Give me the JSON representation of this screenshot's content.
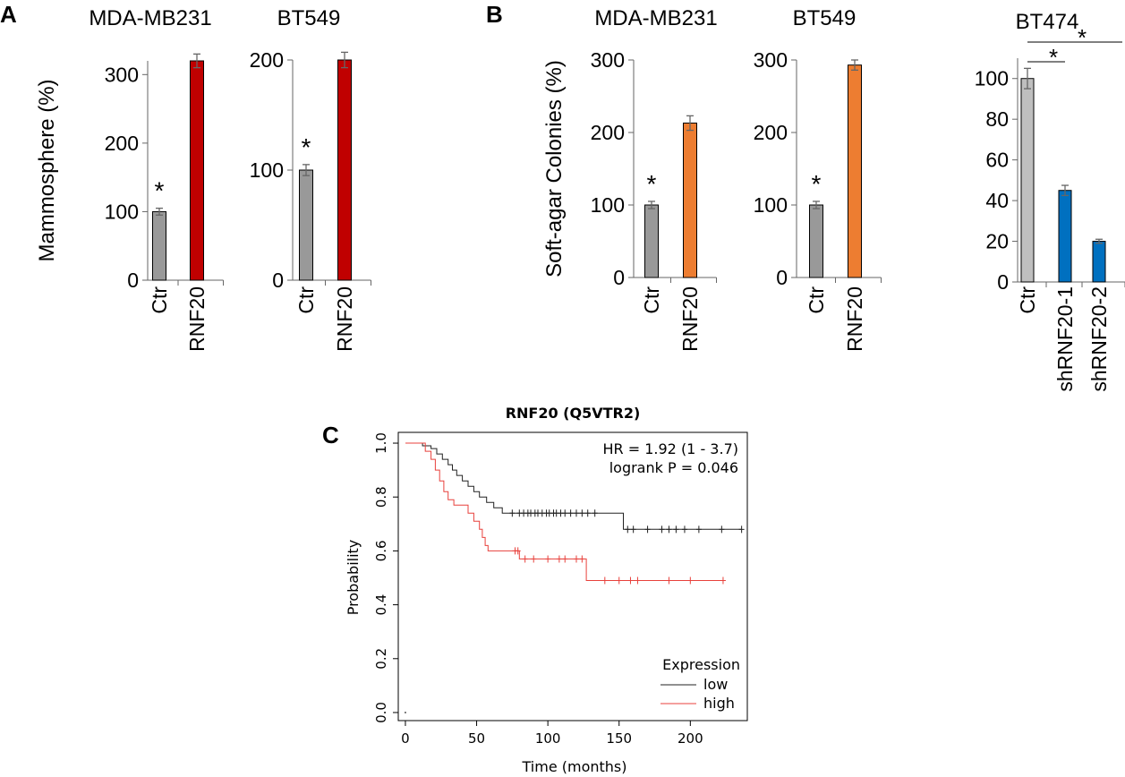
{
  "panel_letters": [
    "A",
    "B",
    "C"
  ],
  "chart_data": [
    {
      "id": "A1",
      "panel": "A",
      "type": "bar",
      "title": "MDA-MB231",
      "ylabel": "Mammosphere (%)",
      "ylim": [
        0,
        320
      ],
      "yticks": [
        0,
        100,
        200,
        300
      ],
      "categories": [
        "Ctr",
        "RNF20"
      ],
      "values": [
        100,
        320
      ],
      "errors": [
        5,
        10
      ],
      "colors": [
        "#999999",
        "#c00000"
      ],
      "annotations": [
        {
          "text": "*",
          "category": "Ctr"
        }
      ]
    },
    {
      "id": "A2",
      "panel": "A",
      "type": "bar",
      "title": "BT549",
      "ylabel": "",
      "ylim": [
        0,
        200
      ],
      "yticks": [
        0,
        100,
        200
      ],
      "categories": [
        "Ctr",
        "RNF20"
      ],
      "values": [
        100,
        200
      ],
      "errors": [
        5,
        7
      ],
      "colors": [
        "#999999",
        "#c00000"
      ],
      "annotations": [
        {
          "text": "*",
          "category": "Ctr"
        }
      ]
    },
    {
      "id": "B1",
      "panel": "B",
      "type": "bar",
      "title": "MDA-MB231",
      "ylabel": "Soft-agar Colonies (%)",
      "ylim": [
        0,
        300
      ],
      "yticks": [
        0,
        100,
        200,
        300
      ],
      "categories": [
        "Ctr",
        "RNF20"
      ],
      "values": [
        100,
        213
      ],
      "errors": [
        5,
        10
      ],
      "colors": [
        "#999999",
        "#ed7d31"
      ],
      "annotations": [
        {
          "text": "*",
          "category": "Ctr"
        }
      ]
    },
    {
      "id": "B2",
      "panel": "B",
      "type": "bar",
      "title": "BT549",
      "ylabel": "",
      "ylim": [
        0,
        300
      ],
      "yticks": [
        0,
        100,
        200,
        300
      ],
      "categories": [
        "Ctr",
        "RNF20"
      ],
      "values": [
        100,
        293
      ],
      "errors": [
        5,
        7
      ],
      "colors": [
        "#999999",
        "#ed7d31"
      ],
      "annotations": [
        {
          "text": "*",
          "category": "Ctr"
        }
      ]
    },
    {
      "id": "B3",
      "panel": "B",
      "type": "bar",
      "title": "BT474",
      "ylabel": "",
      "ylim": [
        0,
        110
      ],
      "yticks": [
        0,
        20,
        40,
        60,
        80,
        100
      ],
      "categories": [
        "Ctr",
        "shRNF20-1",
        "shRNF20-2"
      ],
      "values": [
        100,
        45,
        20
      ],
      "errors": [
        5,
        2.5,
        1
      ],
      "colors": [
        "#bfbfbf",
        "#0070c0",
        "#0070c0"
      ],
      "significance": [
        {
          "from": "Ctr",
          "to": "shRNF20-1",
          "text": "*"
        },
        {
          "from": "Ctr",
          "to": "shRNF20-2",
          "text": "*"
        }
      ]
    },
    {
      "id": "C",
      "panel": "C",
      "type": "line",
      "title": "RNF20 (Q5VTR2)",
      "xlabel": "Time (months)",
      "ylabel": "Probability",
      "xlim": [
        -5,
        240
      ],
      "ylim": [
        -0.03,
        1.04
      ],
      "xticks": [
        0,
        50,
        100,
        150,
        200
      ],
      "yticks": [
        "0.0",
        "0.2",
        "0.4",
        "0.6",
        "0.8",
        "1.0"
      ],
      "annotations": [
        "HR = 1.92 (1 - 3.7)",
        "logrank P = 0.046"
      ],
      "legend": {
        "title": "Expression",
        "position": "bottom-right"
      },
      "series": [
        {
          "name": "low",
          "color": "#222222",
          "steps": [
            [
              0,
              1.0
            ],
            [
              12,
              1.0
            ],
            [
              12,
              0.99
            ],
            [
              18,
              0.99
            ],
            [
              18,
              0.98
            ],
            [
              22,
              0.98
            ],
            [
              22,
              0.96
            ],
            [
              26,
              0.96
            ],
            [
              26,
              0.94
            ],
            [
              30,
              0.94
            ],
            [
              30,
              0.92
            ],
            [
              33,
              0.92
            ],
            [
              33,
              0.9
            ],
            [
              36,
              0.9
            ],
            [
              36,
              0.88
            ],
            [
              40,
              0.88
            ],
            [
              40,
              0.86
            ],
            [
              44,
              0.86
            ],
            [
              44,
              0.84
            ],
            [
              48,
              0.84
            ],
            [
              48,
              0.82
            ],
            [
              52,
              0.82
            ],
            [
              52,
              0.8
            ],
            [
              57,
              0.8
            ],
            [
              57,
              0.78
            ],
            [
              62,
              0.78
            ],
            [
              62,
              0.76
            ],
            [
              68,
              0.76
            ],
            [
              68,
              0.74
            ],
            [
              153,
              0.74
            ],
            [
              153,
              0.68
            ],
            [
              236,
              0.68
            ]
          ],
          "censors": [
            [
              75,
              0.74
            ],
            [
              80,
              0.74
            ],
            [
              83,
              0.74
            ],
            [
              86,
              0.74
            ],
            [
              88,
              0.74
            ],
            [
              91,
              0.74
            ],
            [
              93,
              0.74
            ],
            [
              96,
              0.74
            ],
            [
              99,
              0.74
            ],
            [
              101,
              0.74
            ],
            [
              104,
              0.74
            ],
            [
              106,
              0.74
            ],
            [
              109,
              0.74
            ],
            [
              112,
              0.74
            ],
            [
              116,
              0.74
            ],
            [
              120,
              0.74
            ],
            [
              124,
              0.74
            ],
            [
              128,
              0.74
            ],
            [
              133,
              0.74
            ],
            [
              156,
              0.68
            ],
            [
              160,
              0.68
            ],
            [
              170,
              0.68
            ],
            [
              180,
              0.68
            ],
            [
              185,
              0.68
            ],
            [
              190,
              0.68
            ],
            [
              196,
              0.68
            ],
            [
              206,
              0.68
            ],
            [
              222,
              0.68
            ],
            [
              236,
              0.68
            ]
          ]
        },
        {
          "name": "high",
          "color": "#e8413c",
          "steps": [
            [
              0,
              1.0
            ],
            [
              14,
              1.0
            ],
            [
              14,
              0.97
            ],
            [
              18,
              0.97
            ],
            [
              18,
              0.94
            ],
            [
              21,
              0.94
            ],
            [
              21,
              0.9
            ],
            [
              24,
              0.9
            ],
            [
              24,
              0.86
            ],
            [
              27,
              0.86
            ],
            [
              27,
              0.82
            ],
            [
              30,
              0.82
            ],
            [
              30,
              0.79
            ],
            [
              34,
              0.79
            ],
            [
              34,
              0.77
            ],
            [
              44,
              0.77
            ],
            [
              44,
              0.74
            ],
            [
              48,
              0.74
            ],
            [
              48,
              0.71
            ],
            [
              52,
              0.71
            ],
            [
              52,
              0.68
            ],
            [
              54,
              0.68
            ],
            [
              54,
              0.65
            ],
            [
              56,
              0.65
            ],
            [
              56,
              0.62
            ],
            [
              58,
              0.62
            ],
            [
              58,
              0.6
            ],
            [
              80,
              0.6
            ],
            [
              80,
              0.57
            ],
            [
              127,
              0.57
            ],
            [
              127,
              0.49
            ],
            [
              223,
              0.49
            ]
          ],
          "censors": [
            [
              77,
              0.6
            ],
            [
              79,
              0.6
            ],
            [
              84,
              0.57
            ],
            [
              90,
              0.57
            ],
            [
              100,
              0.57
            ],
            [
              108,
              0.57
            ],
            [
              112,
              0.57
            ],
            [
              120,
              0.57
            ],
            [
              124,
              0.57
            ],
            [
              140,
              0.49
            ],
            [
              150,
              0.49
            ],
            [
              158,
              0.49
            ],
            [
              163,
              0.49
            ],
            [
              185,
              0.49
            ],
            [
              200,
              0.49
            ],
            [
              223,
              0.49
            ]
          ]
        }
      ]
    }
  ]
}
